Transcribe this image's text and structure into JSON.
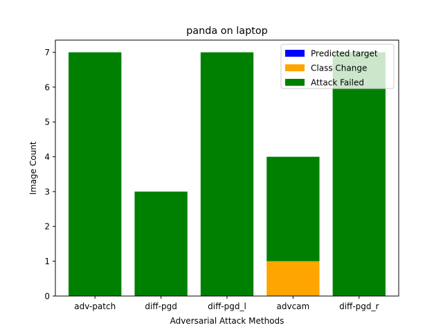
{
  "chart_data": {
    "type": "bar",
    "stacked": true,
    "title": "panda on laptop",
    "xlabel": "Adversarial Attack Methods",
    "ylabel": "Image Count",
    "categories": [
      "adv-patch",
      "diff-pgd",
      "diff-pgd_l",
      "advcam",
      "diff-pgd_r"
    ],
    "series": [
      {
        "name": "Predicted target",
        "color": "#0000ff",
        "values": [
          0,
          0,
          0,
          0,
          0
        ]
      },
      {
        "name": "Class Change",
        "color": "#ffa500",
        "values": [
          0,
          0,
          0,
          1,
          0
        ]
      },
      {
        "name": "Attack Failed",
        "color": "#008000",
        "values": [
          7,
          3,
          7,
          3,
          7
        ]
      }
    ],
    "yticks": [
      0,
      1,
      2,
      3,
      4,
      5,
      6,
      7
    ],
    "ylim": [
      0,
      7.35
    ],
    "legend": "top-right",
    "grid": false
  }
}
